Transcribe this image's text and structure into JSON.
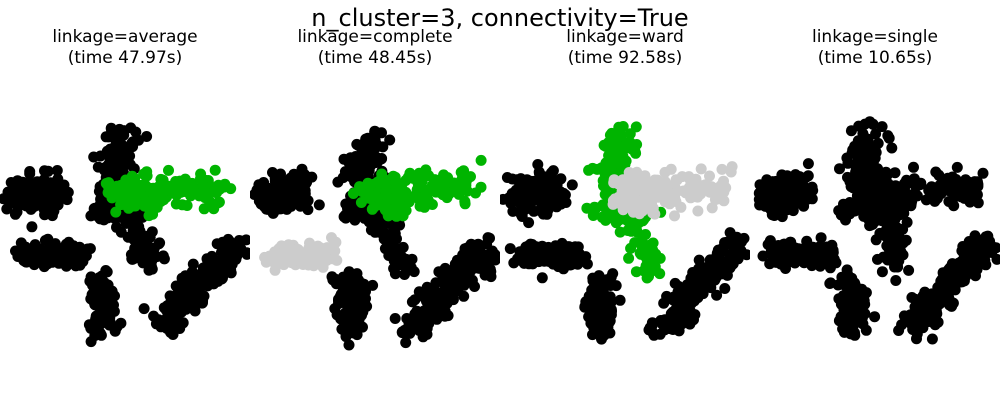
{
  "suptitle": "n_cluster=3, connectivity=True",
  "colors": {
    "black": "#000000",
    "green": "#00b400",
    "grey": "#cccccc"
  },
  "chart_data": [
    {
      "type": "scatter",
      "title_line1": "linkage=average",
      "title_line2": "(time 47.97s)",
      "grid": false,
      "axes_visible": false,
      "xlim": [
        0,
        1
      ],
      "ylim": [
        0,
        1
      ],
      "regions": {
        "left_blob": "black",
        "mid_left_blob": "black",
        "vertical_arm": "black",
        "right_arm": "green",
        "bottom_mid_blob": "black",
        "bottom_right_diag": "black"
      }
    },
    {
      "type": "scatter",
      "title_line1": "linkage=complete",
      "title_line2": "(time 48.45s)",
      "grid": false,
      "axes_visible": false,
      "xlim": [
        0,
        1
      ],
      "ylim": [
        0,
        1
      ],
      "regions": {
        "left_blob": "black",
        "mid_left_blob": "grey",
        "vertical_arm": "black",
        "right_arm": "green",
        "bottom_mid_blob": "black",
        "bottom_right_diag": "black"
      }
    },
    {
      "type": "scatter",
      "title_line1": "linkage=ward",
      "title_line2": "(time 92.58s)",
      "grid": false,
      "axes_visible": false,
      "xlim": [
        0,
        1
      ],
      "ylim": [
        0,
        1
      ],
      "regions": {
        "left_blob": "black",
        "mid_left_blob": "black",
        "vertical_arm": "green",
        "right_arm": "grey",
        "bottom_mid_blob": "black",
        "bottom_right_diag": "black"
      }
    },
    {
      "type": "scatter",
      "title_line1": "linkage=single",
      "title_line2": "(time 10.65s)",
      "grid": false,
      "axes_visible": false,
      "xlim": [
        0,
        1
      ],
      "ylim": [
        0,
        1
      ],
      "regions": {
        "left_blob": "black",
        "mid_left_blob": "black",
        "vertical_arm": "black",
        "right_arm": "black",
        "bottom_mid_blob": "black",
        "bottom_right_diag": "black"
      }
    }
  ]
}
